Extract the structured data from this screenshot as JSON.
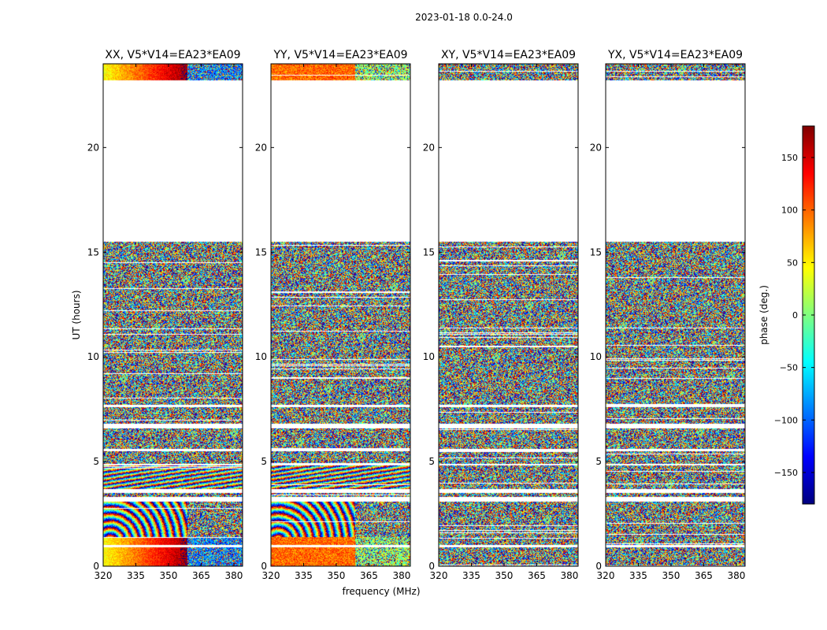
{
  "figure": {
    "suptitle": "2023-01-18 0.0-24.0",
    "xlabel": "frequency (MHz)",
    "ylabel": "UT (hours)"
  },
  "chart_data": {
    "type": "heatmap",
    "x_unit": "MHz",
    "y_unit": "hours",
    "xlim": [
      320,
      384
    ],
    "ylim": [
      0,
      24
    ],
    "xticks": [
      320,
      335,
      350,
      365,
      380
    ],
    "yticks": [
      0,
      5,
      10,
      15,
      20
    ],
    "grid": false,
    "colormap": "jet",
    "colorbar": {
      "label": "phase (deg.)",
      "range": [
        -180,
        180
      ],
      "ticks": [
        150,
        100,
        50,
        0,
        -50,
        -100,
        -150
      ],
      "tick_labels": [
        "150",
        "100",
        "50",
        "0",
        "−50",
        "−100",
        "−150"
      ]
    },
    "panels": [
      {
        "title": "XX, V5*V14=EA23*EA09",
        "show_yticklabels": true
      },
      {
        "title": "YY, V5*V14=EA23*EA09",
        "show_yticklabels": true
      },
      {
        "title": "XY, V5*V14=EA23*EA09",
        "show_yticklabels": true
      },
      {
        "title": "YX, V5*V14=EA23*EA09",
        "show_yticklabels": true
      }
    ],
    "data_blocks_hours": [
      {
        "start": 0.0,
        "end": 0.9,
        "pattern": "gradient"
      },
      {
        "start": 1.0,
        "end": 1.4,
        "pattern": "gradient"
      },
      {
        "start": 1.4,
        "end": 3.1,
        "pattern": "arcs"
      },
      {
        "start": 3.3,
        "end": 3.5,
        "pattern": "noise"
      },
      {
        "start": 3.7,
        "end": 4.8,
        "pattern": "stripes"
      },
      {
        "start": 4.9,
        "end": 5.5,
        "pattern": "noise"
      },
      {
        "start": 5.6,
        "end": 6.6,
        "pattern": "noise"
      },
      {
        "start": 6.8,
        "end": 7.6,
        "pattern": "noise"
      },
      {
        "start": 7.7,
        "end": 15.5,
        "pattern": "noise"
      },
      {
        "start": 23.2,
        "end": 24.0,
        "pattern": "gradient"
      }
    ]
  }
}
